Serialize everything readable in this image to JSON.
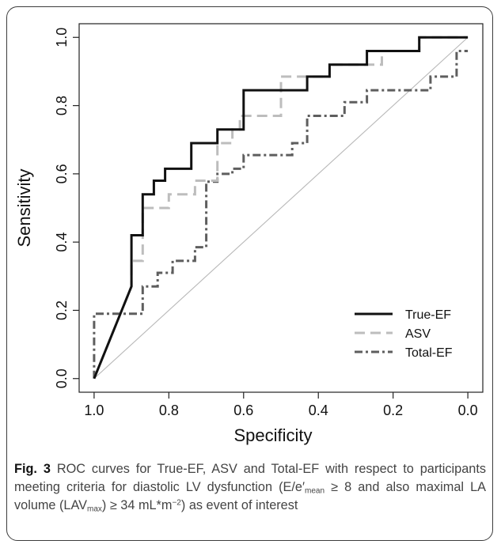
{
  "chart_data": {
    "type": "line",
    "xlabel": "Specificity",
    "ylabel": "Sensitivity",
    "xlim": [
      1.0,
      0.0
    ],
    "ylim": [
      0.0,
      1.0
    ],
    "x_ticks": [
      "1.0",
      "0.8",
      "0.6",
      "0.4",
      "0.2",
      "0.0"
    ],
    "y_ticks": [
      "0.0",
      "0.2",
      "0.4",
      "0.6",
      "0.8",
      "1.0"
    ],
    "grid": false,
    "legend_position": "bottom-right",
    "reference_line": {
      "x": [
        1.0,
        0.0
      ],
      "y": [
        0.0,
        1.0
      ],
      "color": "#b8b8b8"
    },
    "series": [
      {
        "name": "True-EF",
        "color": "#111111",
        "dash": "solid",
        "x": [
          1.0,
          0.9,
          0.9,
          0.87,
          0.87,
          0.84,
          0.84,
          0.81,
          0.81,
          0.74,
          0.74,
          0.67,
          0.67,
          0.6,
          0.6,
          0.43,
          0.43,
          0.37,
          0.37,
          0.27,
          0.27,
          0.13,
          0.13,
          0.03,
          0.03,
          0.0
        ],
        "y": [
          0.0,
          0.27,
          0.42,
          0.42,
          0.54,
          0.54,
          0.58,
          0.58,
          0.615,
          0.615,
          0.69,
          0.69,
          0.73,
          0.73,
          0.845,
          0.845,
          0.885,
          0.885,
          0.92,
          0.92,
          0.96,
          0.96,
          1.0,
          1.0,
          1.0,
          1.0
        ]
      },
      {
        "name": "ASV",
        "color": "#bdbdbd",
        "dash": "dashed",
        "x": [
          1.0,
          0.9,
          0.9,
          0.87,
          0.87,
          0.84,
          0.84,
          0.8,
          0.8,
          0.73,
          0.73,
          0.67,
          0.67,
          0.63,
          0.63,
          0.61,
          0.61,
          0.5,
          0.5,
          0.43,
          0.43,
          0.37,
          0.37,
          0.23,
          0.23,
          0.13,
          0.13,
          0.0
        ],
        "y": [
          0.0,
          0.27,
          0.345,
          0.345,
          0.5,
          0.5,
          0.5,
          0.5,
          0.54,
          0.54,
          0.58,
          0.58,
          0.69,
          0.69,
          0.73,
          0.73,
          0.77,
          0.77,
          0.885,
          0.885,
          0.885,
          0.885,
          0.92,
          0.92,
          0.96,
          0.96,
          1.0,
          1.0
        ]
      },
      {
        "name": "Total-EF",
        "color": "#5e5e5e",
        "dash": "dashdot",
        "x": [
          1.0,
          1.0,
          0.87,
          0.87,
          0.85,
          0.85,
          0.83,
          0.83,
          0.79,
          0.79,
          0.73,
          0.73,
          0.7,
          0.7,
          0.67,
          0.67,
          0.63,
          0.63,
          0.6,
          0.6,
          0.47,
          0.47,
          0.43,
          0.43,
          0.33,
          0.33,
          0.27,
          0.27,
          0.1,
          0.1,
          0.03,
          0.03,
          0.0
        ],
        "y": [
          0.0,
          0.19,
          0.19,
          0.27,
          0.27,
          0.27,
          0.27,
          0.31,
          0.31,
          0.345,
          0.345,
          0.385,
          0.385,
          0.577,
          0.577,
          0.6,
          0.6,
          0.615,
          0.615,
          0.655,
          0.655,
          0.69,
          0.69,
          0.77,
          0.77,
          0.81,
          0.81,
          0.845,
          0.845,
          0.885,
          0.885,
          0.96,
          0.96
        ]
      }
    ]
  },
  "caption": {
    "fig_label": "Fig. 3",
    "text_1": " ROC curves for True-EF, ASV and Total-EF with respect to participants meeting criteria for diastolic LV dysfunction (E/e′",
    "sub_1": "mean",
    "text_2": " ≥ 8 and also maximal LA volume (LAV",
    "sub_2": "max",
    "text_3": ") ≥ 34 mL*m",
    "sup_1": "−2",
    "text_4": ") as event of interest"
  }
}
